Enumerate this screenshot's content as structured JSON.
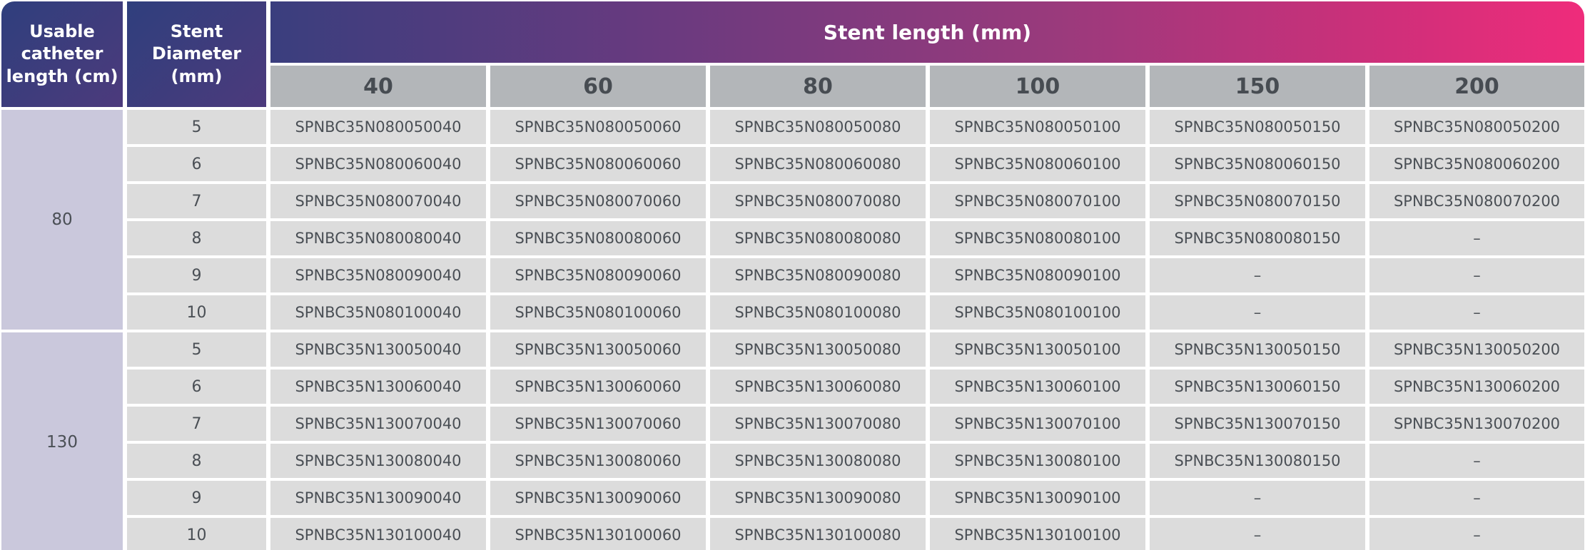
{
  "header": {
    "usable_catheter": "Usable\ncatheter\nlength (cm)",
    "stent_diameter": "Stent\nDiameter\n(mm)",
    "stent_length": "Stent length (mm)",
    "lengths": [
      "40",
      "60",
      "80",
      "100",
      "150",
      "200"
    ]
  },
  "groups": [
    {
      "catheter_length": "80",
      "rows": [
        {
          "diameter": "5",
          "codes": [
            "SPNBC35N080050040",
            "SPNBC35N080050060",
            "SPNBC35N080050080",
            "SPNBC35N080050100",
            "SPNBC35N080050150",
            "SPNBC35N080050200"
          ]
        },
        {
          "diameter": "6",
          "codes": [
            "SPNBC35N080060040",
            "SPNBC35N080060060",
            "SPNBC35N080060080",
            "SPNBC35N080060100",
            "SPNBC35N080060150",
            "SPNBC35N080060200"
          ]
        },
        {
          "diameter": "7",
          "codes": [
            "SPNBC35N080070040",
            "SPNBC35N080070060",
            "SPNBC35N080070080",
            "SPNBC35N080070100",
            "SPNBC35N080070150",
            "SPNBC35N080070200"
          ]
        },
        {
          "diameter": "8",
          "codes": [
            "SPNBC35N080080040",
            "SPNBC35N080080060",
            "SPNBC35N080080080",
            "SPNBC35N080080100",
            "SPNBC35N080080150",
            "–"
          ]
        },
        {
          "diameter": "9",
          "codes": [
            "SPNBC35N080090040",
            "SPNBC35N080090060",
            "SPNBC35N080090080",
            "SPNBC35N080090100",
            "–",
            "–"
          ]
        },
        {
          "diameter": "10",
          "codes": [
            "SPNBC35N080100040",
            "SPNBC35N080100060",
            "SPNBC35N080100080",
            "SPNBC35N080100100",
            "–",
            "–"
          ]
        }
      ]
    },
    {
      "catheter_length": "130",
      "rows": [
        {
          "diameter": "5",
          "codes": [
            "SPNBC35N130050040",
            "SPNBC35N130050060",
            "SPNBC35N130050080",
            "SPNBC35N130050100",
            "SPNBC35N130050150",
            "SPNBC35N130050200"
          ]
        },
        {
          "diameter": "6",
          "codes": [
            "SPNBC35N130060040",
            "SPNBC35N130060060",
            "SPNBC35N130060080",
            "SPNBC35N130060100",
            "SPNBC35N130060150",
            "SPNBC35N130060200"
          ]
        },
        {
          "diameter": "7",
          "codes": [
            "SPNBC35N130070040",
            "SPNBC35N130070060",
            "SPNBC35N130070080",
            "SPNBC35N130070100",
            "SPNBC35N130070150",
            "SPNBC35N130070200"
          ]
        },
        {
          "diameter": "8",
          "codes": [
            "SPNBC35N130080040",
            "SPNBC35N130080060",
            "SPNBC35N130080080",
            "SPNBC35N130080100",
            "SPNBC35N130080150",
            "–"
          ]
        },
        {
          "diameter": "9",
          "codes": [
            "SPNBC35N130090040",
            "SPNBC35N130090060",
            "SPNBC35N130090080",
            "SPNBC35N130090100",
            "–",
            "–"
          ]
        },
        {
          "diameter": "10",
          "codes": [
            "SPNBC35N130100040",
            "SPNBC35N130100060",
            "SPNBC35N130100080",
            "SPNBC35N130100100",
            "–",
            "–"
          ]
        }
      ]
    }
  ],
  "colors": {
    "header_dark": "#2f3f7d",
    "header_gradient_end": "#ef2c7b",
    "length_header_bg": "#b3b6b9",
    "group_bg": "#cac8dc",
    "cell_bg": "#dcdcdc"
  }
}
